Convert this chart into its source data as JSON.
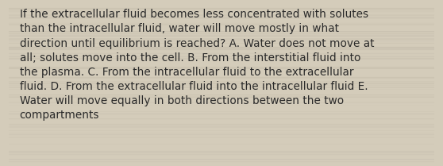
{
  "lines": [
    "If the extracellular fluid becomes less concentrated with solutes",
    "than the intracellular fluid, water will move mostly in what",
    "direction until equilibrium is reached? A. Water does not move at",
    "all; solutes move into the cell. B. From the interstitial fluid into",
    "the plasma. C. From the intracellular fluid to the extracellular",
    "fluid. D. From the extracellular fluid into the intracellular fluid E.",
    "Water will move equally in both directions between the two",
    "compartments"
  ],
  "background_color": "#d4ccba",
  "text_color": "#2a2a2a",
  "font_size": 9.8,
  "fig_width": 5.58,
  "fig_height": 2.09,
  "dpi": 100
}
